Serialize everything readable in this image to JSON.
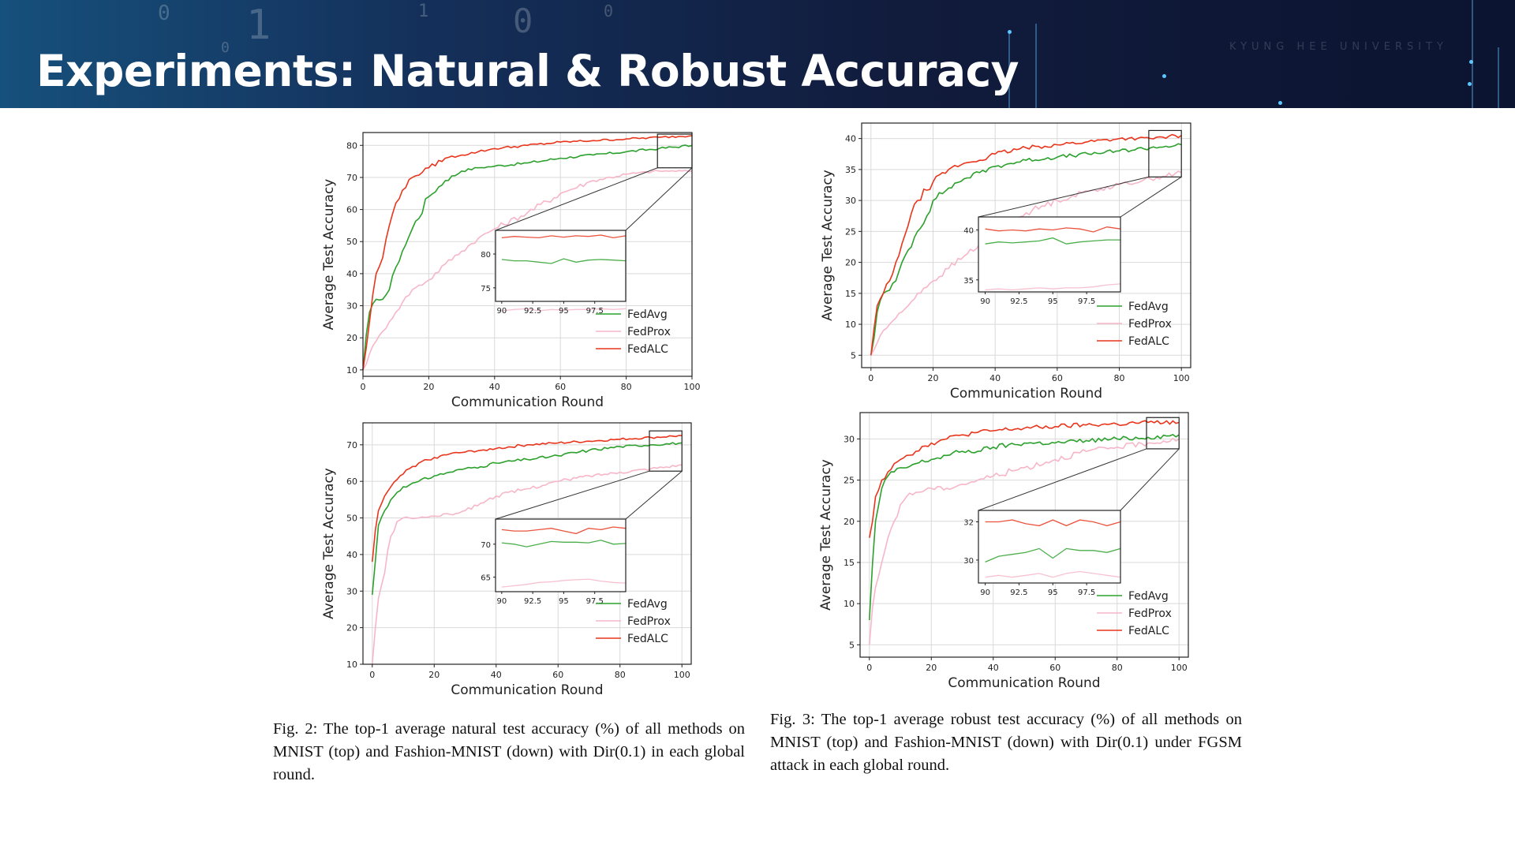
{
  "slide": {
    "title": "Experiments: Natural & Robust Accuracy"
  },
  "captions": {
    "fig2": "Fig. 2: The top-1 average natural test accuracy (%) of all methods on MNIST (top) and Fashion-MNIST (down) with Dir(0.1) in each global round.",
    "fig3": "Fig. 3: The top-1 average robust test accuracy (%) of all methods on MNIST (top) and Fashion-MNIST (down) with Dir(0.1) under FGSM attack in each global round."
  },
  "chart_data": [
    {
      "type": "line",
      "title": "",
      "xlabel": "Communication Round",
      "ylabel": "Average Test Accuracy",
      "xlim": [
        0,
        100
      ],
      "ylim": [
        8,
        84
      ],
      "xticks": [
        0,
        20,
        40,
        60,
        80,
        100
      ],
      "yticks": [
        10,
        20,
        30,
        40,
        50,
        60,
        70,
        80
      ],
      "grid": true,
      "legend": "bottom-right",
      "x": [
        0,
        2,
        4,
        6,
        8,
        10,
        12,
        15,
        20,
        25,
        30,
        35,
        40,
        50,
        60,
        70,
        80,
        90,
        100
      ],
      "series": [
        {
          "name": "FedAvg",
          "color": "#2ca02c",
          "values": [
            10,
            28,
            32,
            32,
            35,
            42,
            47,
            54,
            64,
            69,
            72,
            73,
            73.5,
            74.5,
            76,
            77,
            78,
            79,
            80
          ]
        },
        {
          "name": "FedProx",
          "color": "#f7b6c8",
          "values": [
            10,
            15,
            19,
            22,
            25,
            28,
            31,
            35,
            38,
            43,
            47,
            51,
            54,
            59,
            65,
            69,
            71,
            72,
            72
          ]
        },
        {
          "name": "FedALC",
          "color": "#e8351c",
          "values": [
            10,
            25,
            40,
            45,
            55,
            62,
            66,
            70,
            73,
            76,
            77,
            78,
            79,
            80,
            81,
            81.5,
            82,
            82.5,
            83
          ]
        }
      ],
      "inset": {
        "xlim": [
          89.5,
          100
        ],
        "ylim": [
          73,
          83.5
        ],
        "xticks": [
          90.0,
          92.5,
          95.0,
          97.5
        ],
        "yticks": [
          75,
          80
        ],
        "x": [
          90,
          91,
          92,
          93,
          94,
          95,
          96,
          97,
          98,
          99,
          100
        ],
        "series": [
          {
            "name": "FedAvg",
            "values": [
              79.2,
              79.0,
              79.0,
              78.8,
              78.6,
              79.3,
              78.8,
              79.1,
              79.2,
              79.1,
              79.0
            ]
          },
          {
            "name": "FedProx",
            "values": [
              71.6,
              71.8,
              71.9,
              71.6,
              71.8,
              71.7,
              71.8,
              71.8,
              71.9,
              71.8,
              71.9
            ]
          },
          {
            "name": "FedALC",
            "values": [
              82.4,
              82.6,
              82.5,
              82.4,
              82.7,
              82.5,
              82.7,
              82.6,
              82.8,
              82.4,
              82.7
            ]
          }
        ]
      }
    },
    {
      "type": "line",
      "title": "",
      "xlabel": "Communication Round",
      "ylabel": "Average Test Accuracy",
      "xlim": [
        -3,
        103
      ],
      "ylim": [
        3,
        42.5
      ],
      "xticks": [
        0,
        20,
        40,
        60,
        80,
        100
      ],
      "yticks": [
        5,
        10,
        15,
        20,
        25,
        30,
        35,
        40
      ],
      "grid": true,
      "legend": "bottom-right",
      "x": [
        0,
        2,
        4,
        6,
        8,
        10,
        12,
        15,
        20,
        25,
        30,
        35,
        40,
        50,
        60,
        70,
        80,
        90,
        100
      ],
      "series": [
        {
          "name": "FedAvg",
          "color": "#2ca02c",
          "values": [
            5,
            12,
            15,
            15.5,
            17,
            20,
            22,
            25,
            30,
            32,
            33.5,
            34.5,
            35.5,
            36.5,
            37,
            37.5,
            38,
            38.5,
            39
          ]
        },
        {
          "name": "FedProx",
          "color": "#f7b6c8",
          "values": [
            5,
            7,
            9,
            10,
            11,
            12,
            13,
            15,
            17,
            19,
            21,
            23,
            25,
            28,
            30,
            31.5,
            32.5,
            33.5,
            34.5
          ]
        },
        {
          "name": "FedALC",
          "color": "#e8351c",
          "values": [
            5,
            13,
            15,
            17,
            20,
            23,
            26,
            30,
            33,
            35,
            36,
            36.5,
            37.5,
            38.5,
            39,
            39.5,
            40,
            40,
            40.5
          ]
        }
      ],
      "inset": {
        "xlim": [
          89.5,
          100
        ],
        "ylim": [
          33.8,
          41.3
        ],
        "xticks": [
          90.0,
          92.5,
          95.0,
          97.5
        ],
        "yticks": [
          35,
          40
        ],
        "x": [
          90,
          91,
          92,
          93,
          94,
          95,
          96,
          97,
          98,
          99,
          100
        ],
        "series": [
          {
            "name": "FedAvg",
            "values": [
              38.6,
              38.8,
              38.7,
              38.8,
              38.9,
              39.2,
              38.6,
              38.8,
              38.9,
              39.0,
              39.0
            ]
          },
          {
            "name": "FedProx",
            "values": [
              34.0,
              34.1,
              34.0,
              34.1,
              34.2,
              34.1,
              34.2,
              34.2,
              34.3,
              34.5,
              34.6
            ]
          },
          {
            "name": "FedALC",
            "values": [
              40.1,
              39.9,
              40.0,
              39.9,
              40.1,
              40.0,
              40.2,
              40.1,
              39.8,
              40.3,
              40.1
            ]
          }
        ]
      }
    },
    {
      "type": "line",
      "title": "",
      "xlabel": "Communication Round",
      "ylabel": "Average Test Accuracy",
      "xlim": [
        -3,
        103
      ],
      "ylim": [
        10,
        76
      ],
      "xticks": [
        0,
        20,
        40,
        60,
        80,
        100
      ],
      "yticks": [
        10,
        20,
        30,
        40,
        50,
        60,
        70
      ],
      "grid": true,
      "legend": "bottom-right",
      "x": [
        0,
        2,
        4,
        6,
        8,
        10,
        12,
        15,
        20,
        25,
        30,
        35,
        40,
        50,
        60,
        70,
        80,
        90,
        100
      ],
      "series": [
        {
          "name": "FedAvg",
          "color": "#2ca02c",
          "values": [
            29,
            48,
            52,
            55,
            57,
            58.5,
            59,
            60,
            61.5,
            62.5,
            63.5,
            64,
            65,
            66,
            67,
            68.5,
            69.5,
            70,
            70.5
          ]
        },
        {
          "name": "FedProx",
          "color": "#f7b6c8",
          "values": [
            10,
            28,
            35,
            45,
            49,
            50,
            50,
            50,
            50.5,
            51,
            52,
            54,
            56,
            58,
            60,
            61.5,
            62.5,
            63.5,
            64.5
          ]
        },
        {
          "name": "FedALC",
          "color": "#e8351c",
          "values": [
            38,
            52,
            56,
            58.5,
            60.5,
            62,
            63.5,
            65,
            66.5,
            67.5,
            68,
            68.5,
            69,
            70,
            70.5,
            71,
            71.5,
            72,
            72.5
          ]
        }
      ],
      "inset": {
        "xlim": [
          89.5,
          100
        ],
        "ylim": [
          62.8,
          73.8
        ],
        "xticks": [
          90.0,
          92.5,
          95.0,
          97.5
        ],
        "yticks": [
          65,
          70
        ],
        "x": [
          90,
          91,
          92,
          93,
          94,
          95,
          96,
          97,
          98,
          99,
          100
        ],
        "series": [
          {
            "name": "FedAvg",
            "values": [
              70.2,
              70.0,
              69.6,
              70.0,
              70.4,
              70.3,
              70.3,
              70.2,
              70.6,
              70.0,
              70.1
            ]
          },
          {
            "name": "FedProx",
            "values": [
              63.5,
              63.7,
              63.9,
              64.2,
              64.3,
              64.5,
              64.6,
              64.7,
              64.4,
              64.2,
              64.1
            ]
          },
          {
            "name": "FedALC",
            "values": [
              72.2,
              72.0,
              72.0,
              72.2,
              72.4,
              72.0,
              71.6,
              72.4,
              72.2,
              72.6,
              72.4
            ]
          }
        ]
      }
    },
    {
      "type": "line",
      "title": "",
      "xlabel": "Communication Round",
      "ylabel": "Average Test Accuracy",
      "xlim": [
        -3,
        103
      ],
      "ylim": [
        3.5,
        33.2
      ],
      "xticks": [
        0,
        20,
        40,
        60,
        80,
        100
      ],
      "yticks": [
        5,
        10,
        15,
        20,
        25,
        30
      ],
      "grid": true,
      "legend": "bottom-right",
      "x": [
        0,
        2,
        4,
        6,
        8,
        10,
        12,
        15,
        20,
        25,
        30,
        35,
        40,
        50,
        60,
        70,
        80,
        90,
        100
      ],
      "series": [
        {
          "name": "FedAvg",
          "color": "#2ca02c",
          "values": [
            8,
            20,
            24,
            25.5,
            26,
            26.5,
            26.5,
            27,
            27.5,
            28,
            28.5,
            28.5,
            29,
            29.5,
            29.5,
            29.8,
            30,
            30.2,
            30.5
          ]
        },
        {
          "name": "FedProx",
          "color": "#f7b6c8",
          "values": [
            5,
            12,
            15,
            18,
            20,
            22,
            23,
            23.5,
            24,
            24,
            24.5,
            25,
            25.5,
            26.5,
            27.5,
            28.5,
            29,
            29.5,
            30
          ]
        },
        {
          "name": "FedALC",
          "color": "#e8351c",
          "values": [
            18,
            23,
            25,
            26,
            27,
            27.5,
            28,
            28.5,
            29.5,
            30,
            30.5,
            30.8,
            31,
            31.3,
            31.5,
            31.7,
            31.8,
            32,
            32
          ]
        }
      ],
      "inset": {
        "xlim": [
          89.5,
          100
        ],
        "ylim": [
          28.8,
          32.6
        ],
        "xticks": [
          90.0,
          92.5,
          95.0,
          97.5
        ],
        "yticks": [
          30,
          32
        ],
        "x": [
          90,
          91,
          92,
          93,
          94,
          95,
          96,
          97,
          98,
          99,
          100
        ],
        "series": [
          {
            "name": "FedAvg",
            "values": [
              29.9,
              30.2,
              30.3,
              30.4,
              30.6,
              30.1,
              30.6,
              30.5,
              30.5,
              30.4,
              30.6
            ]
          },
          {
            "name": "FedProx",
            "values": [
              29.1,
              29.2,
              29.1,
              29.2,
              29.3,
              29.1,
              29.3,
              29.4,
              29.3,
              29.2,
              29.1
            ]
          },
          {
            "name": "FedALC",
            "values": [
              32.0,
              32.0,
              32.1,
              31.9,
              31.8,
              32.1,
              31.8,
              32.1,
              32.0,
              31.8,
              32.0
            ]
          }
        ]
      }
    }
  ]
}
